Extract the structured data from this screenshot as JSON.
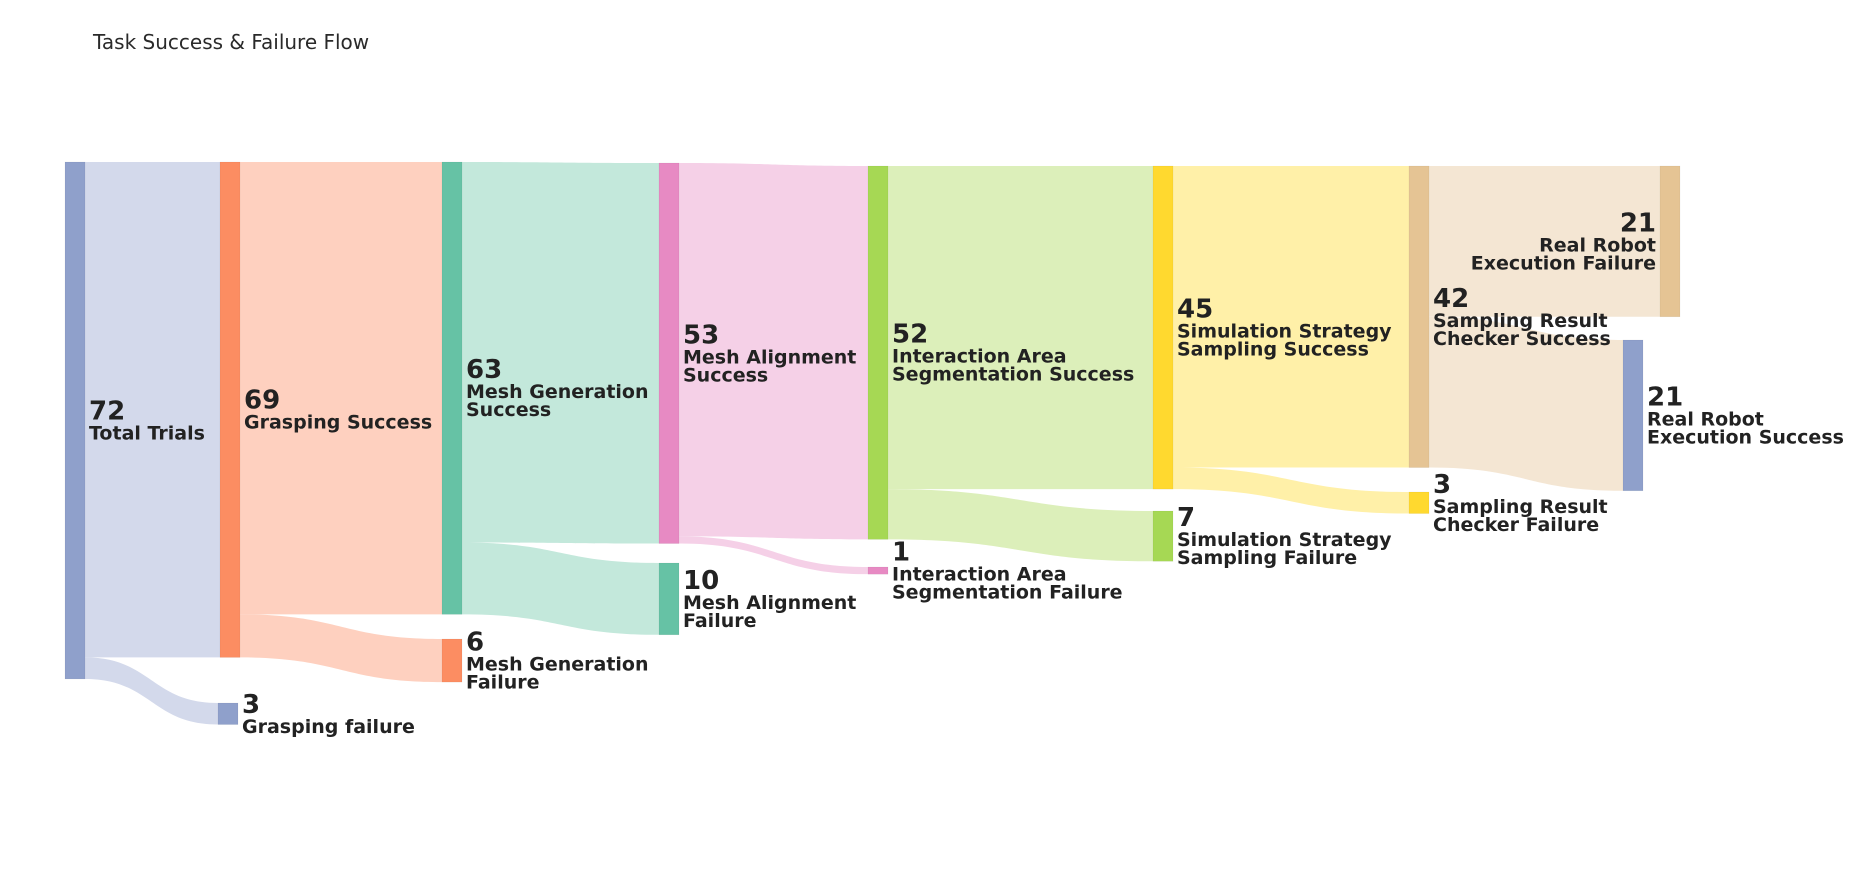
{
  "chart_data": {
    "type": "sankey",
    "title": "Task Success & Failure Flow",
    "nodes": [
      {
        "id": "total",
        "label": "Total Trials",
        "value": 72,
        "color": "#8fa0cb"
      },
      {
        "id": "grasp_s",
        "label": "Grasping Success",
        "value": 69,
        "color": "#fc8d62"
      },
      {
        "id": "grasp_f",
        "label": "Grasping failure",
        "value": 3,
        "color": "#8fa0cb"
      },
      {
        "id": "mesh_s",
        "label": "Mesh Generation Success",
        "value": 63,
        "color": "#66c2a5"
      },
      {
        "id": "mesh_f",
        "label": "Mesh Generation Failure",
        "value": 6,
        "color": "#fc8d62"
      },
      {
        "id": "align_s",
        "label": "Mesh Alignment Success",
        "value": 53,
        "color": "#e78ac3"
      },
      {
        "id": "align_f",
        "label": "Mesh Alignment Failure",
        "value": 10,
        "color": "#66c2a5"
      },
      {
        "id": "seg_s",
        "label": "Interaction Area Segmentation Success",
        "value": 52,
        "color": "#a6d854"
      },
      {
        "id": "seg_f",
        "label": "Interaction Area Segmentation Failure",
        "value": 1,
        "color": "#e78ac3"
      },
      {
        "id": "sim_s",
        "label": "Simulation Strategy Sampling Success",
        "value": 45,
        "color": "#ffd92f"
      },
      {
        "id": "sim_f",
        "label": "Simulation Strategy Sampling Failure",
        "value": 7,
        "color": "#a6d854"
      },
      {
        "id": "chk_s",
        "label": "Sampling Result Checker Success",
        "value": 42,
        "color": "#e5c494"
      },
      {
        "id": "chk_f",
        "label": "Sampling Result Checker Failure",
        "value": 3,
        "color": "#ffd92f"
      },
      {
        "id": "robot_f",
        "label": "Real Robot Execution Failure",
        "value": 21,
        "color": "#e5c494"
      },
      {
        "id": "robot_s",
        "label": "Real Robot Execution Success",
        "value": 21,
        "color": "#8fa0cb"
      }
    ],
    "links": [
      {
        "source": "total",
        "target": "grasp_s",
        "value": 69,
        "color": "#d3d9eb"
      },
      {
        "source": "total",
        "target": "grasp_f",
        "value": 3,
        "color": "#d3d9eb"
      },
      {
        "source": "grasp_s",
        "target": "mesh_s",
        "value": 63,
        "color": "#fed0bf"
      },
      {
        "source": "grasp_s",
        "target": "mesh_f",
        "value": 6,
        "color": "#fed0bf"
      },
      {
        "source": "mesh_s",
        "target": "align_s",
        "value": 53,
        "color": "#c3e8db"
      },
      {
        "source": "mesh_s",
        "target": "align_f",
        "value": 10,
        "color": "#c3e8db"
      },
      {
        "source": "align_s",
        "target": "seg_s",
        "value": 52,
        "color": "#f5d0e7"
      },
      {
        "source": "align_s",
        "target": "seg_f",
        "value": 1,
        "color": "#f5d0e7"
      },
      {
        "source": "seg_s",
        "target": "sim_s",
        "value": 45,
        "color": "#dcefba"
      },
      {
        "source": "seg_s",
        "target": "sim_f",
        "value": 7,
        "color": "#dcefba"
      },
      {
        "source": "sim_s",
        "target": "chk_s",
        "value": 42,
        "color": "#fff0a8"
      },
      {
        "source": "sim_s",
        "target": "chk_f",
        "value": 3,
        "color": "#fff0a8"
      },
      {
        "source": "chk_s",
        "target": "robot_f",
        "value": 21,
        "color": "#f4e6d3"
      },
      {
        "source": "chk_s",
        "target": "robot_s",
        "value": 21,
        "color": "#f4e6d3"
      }
    ]
  }
}
